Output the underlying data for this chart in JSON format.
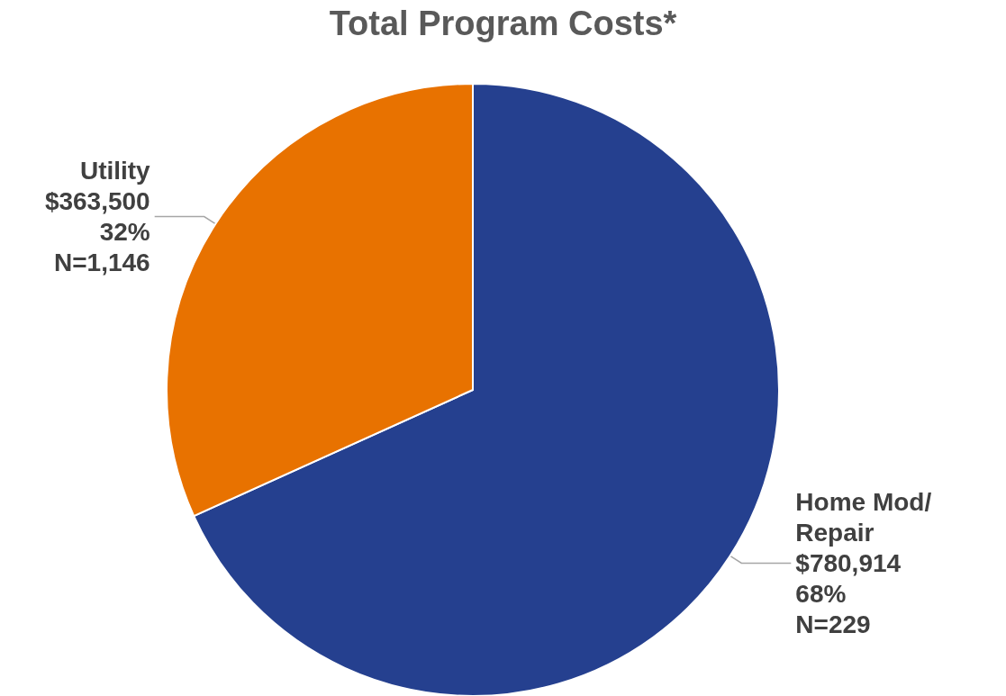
{
  "chart_data": {
    "type": "pie",
    "title": "Total Program Costs*",
    "categories": [
      "Home Mod/Repair",
      "Utility"
    ],
    "values": [
      780914,
      363500
    ],
    "colors": [
      "#25408f",
      "#e87200"
    ],
    "value_labels": [
      "$780,914\n68%\nN=229",
      "$363,500\n32%\nN=1,146"
    ],
    "legend": false
  }
}
